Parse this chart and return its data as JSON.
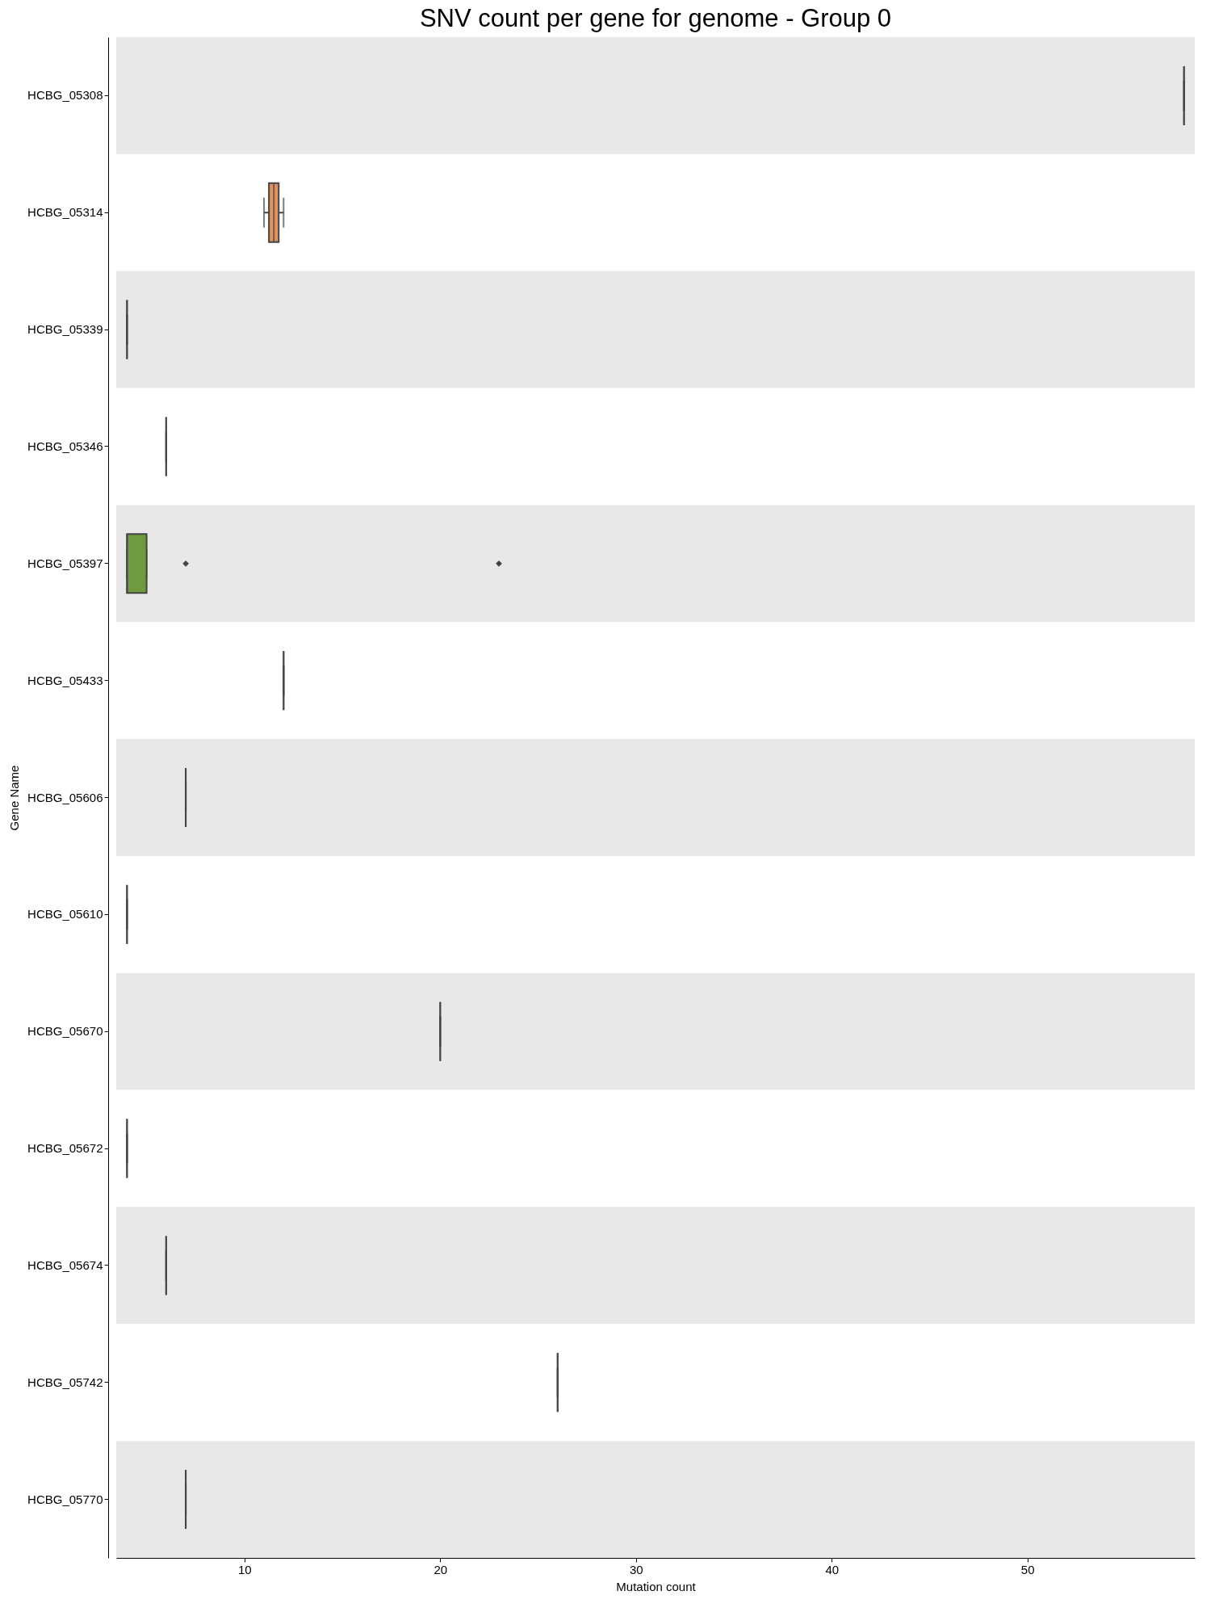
{
  "chart_data": {
    "type": "box",
    "orientation": "horizontal",
    "title": "SNV count per gene for genome - Group 0",
    "xlabel": "Mutation count",
    "ylabel": "Gene Name",
    "categories": [
      "HCBG_05308",
      "HCBG_05314",
      "HCBG_05339",
      "HCBG_05346",
      "HCBG_05397",
      "HCBG_05433",
      "HCBG_05606",
      "HCBG_05610",
      "HCBG_05670",
      "HCBG_05672",
      "HCBG_05674",
      "HCBG_05742",
      "HCBG_05770"
    ],
    "colors": [
      null,
      "#e1925f",
      null,
      null,
      "#6f9a3f",
      null,
      null,
      null,
      null,
      null,
      null,
      null,
      null
    ],
    "boxes": [
      {
        "low": 58,
        "q1": 58,
        "median": 58,
        "q3": 58,
        "high": 58
      },
      {
        "low": 11,
        "q1": 11.25,
        "median": 11.5,
        "q3": 11.75,
        "high": 12
      },
      {
        "low": 4,
        "q1": 4,
        "median": 4,
        "q3": 4,
        "high": 4
      },
      {
        "low": 6,
        "q1": 6,
        "median": 6,
        "q3": 6,
        "high": 6
      },
      {
        "low": 4,
        "q1": 4,
        "median": 4,
        "q3": 5,
        "high": 5,
        "outliers": [
          7,
          23
        ]
      },
      {
        "low": 12,
        "q1": 12,
        "median": 12,
        "q3": 12,
        "high": 12
      },
      {
        "low": 7,
        "q1": 7,
        "median": 7,
        "q3": 7,
        "high": 7
      },
      {
        "low": 4,
        "q1": 4,
        "median": 4,
        "q3": 4,
        "high": 4
      },
      {
        "low": 20,
        "q1": 20,
        "median": 20,
        "q3": 20,
        "high": 20
      },
      {
        "low": 4,
        "q1": 4,
        "median": 4,
        "q3": 4,
        "high": 4
      },
      {
        "low": 6,
        "q1": 6,
        "median": 6,
        "q3": 6,
        "high": 6
      },
      {
        "low": 26,
        "q1": 26,
        "median": 26,
        "q3": 26,
        "high": 26
      },
      {
        "low": 7,
        "q1": 7,
        "median": 7,
        "q3": 7,
        "high": 7
      }
    ],
    "xlim": [
      3.45,
      58.55
    ],
    "xticks": [
      10,
      20,
      30,
      40,
      50
    ],
    "bands": [
      {
        "axis": "y",
        "from": "HCBG_05308",
        "to": "HCBG_05308",
        "color": "#e8e8e8"
      },
      {
        "axis": "y",
        "from": "HCBG_05339",
        "to": "HCBG_05339",
        "color": "#e8e8e8"
      },
      {
        "axis": "y",
        "from": "HCBG_05397",
        "to": "HCBG_05397",
        "color": "#e8e8e8"
      },
      {
        "axis": "y",
        "from": "HCBG_05606",
        "to": "HCBG_05606",
        "color": "#e8e8e8"
      },
      {
        "axis": "y",
        "from": "HCBG_05670",
        "to": "HCBG_05670",
        "color": "#e8e8e8"
      },
      {
        "axis": "y",
        "from": "HCBG_05674",
        "to": "HCBG_05674",
        "color": "#e8e8e8"
      },
      {
        "axis": "y",
        "from": "HCBG_05770",
        "to": "HCBG_05770",
        "color": "#e8e8e8"
      }
    ]
  }
}
